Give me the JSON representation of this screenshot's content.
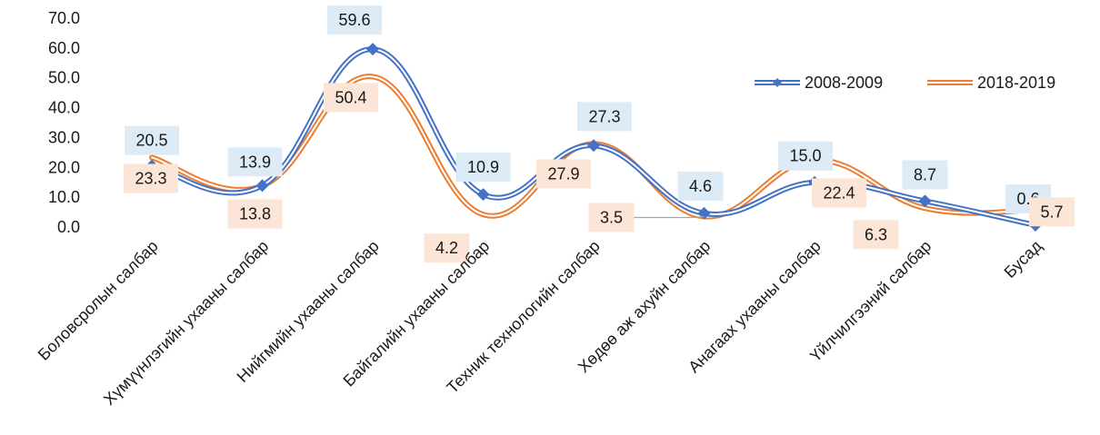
{
  "chart_data": {
    "type": "line",
    "title": "",
    "xlabel": "",
    "ylabel": "",
    "ylim": [
      0,
      70
    ],
    "yticks": [
      "0.0",
      "10.0",
      "20.0",
      "30.0",
      "40.0",
      "50.0",
      "60.0",
      "70.0"
    ],
    "grid": false,
    "smooth": true,
    "legend_position": "top-right",
    "categories": [
      "Боловсролын салбар",
      "Хүмүүнлэгийн ухааны салбар",
      "Нийгмийн ухааны салбар",
      "Байгалийн ухааны салбар",
      "Техник технологийн  салбар",
      "Хөдөө аж ахуйн салбар",
      "Анагаах ухааны салбар",
      "Үйлчилгээний салбар",
      "Бусад"
    ],
    "series": [
      {
        "name": "2008-2009",
        "values": [
          20.5,
          13.9,
          59.6,
          10.9,
          27.3,
          4.6,
          15.0,
          8.7,
          0.6
        ],
        "labels": [
          "20.5",
          "13.9",
          "59.6",
          "10.9",
          "27.3",
          "4.6",
          "15.0",
          "8.7",
          "0.6"
        ],
        "color": "#4472C4",
        "label_bg": "#DDEBF7",
        "marker": "diamond"
      },
      {
        "name": "2018-2019",
        "values": [
          23.3,
          13.8,
          50.4,
          4.2,
          27.9,
          3.5,
          22.4,
          6.3,
          5.7
        ],
        "labels": [
          "23.3",
          "13.8",
          "50.4",
          "4.2",
          "27.9",
          "3.5",
          "22.4",
          "6.3",
          "5.7"
        ],
        "color": "#ED7D31",
        "label_bg": "#FBE5D6",
        "marker": "none"
      }
    ]
  }
}
